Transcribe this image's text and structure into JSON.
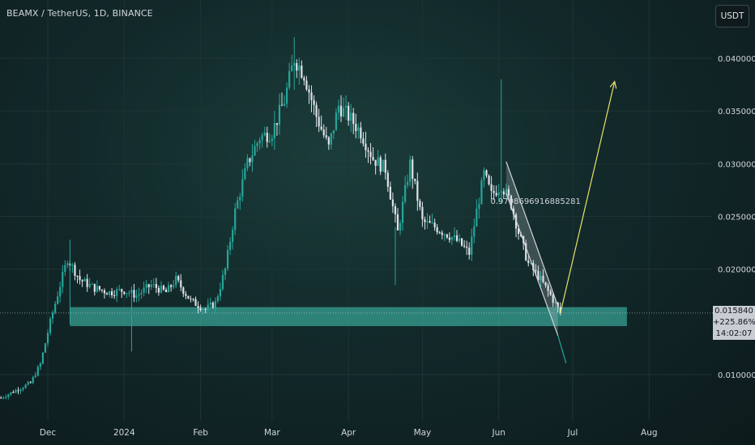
{
  "header": {
    "symbol_title": "BEAMX / TetherUS, 1D, BINANCE",
    "currency_button": "USDT"
  },
  "price_tags": {
    "last_price": "0.015840",
    "change_percent": "+225.86%",
    "bar_timer": "14:02:07"
  },
  "colors": {
    "up": "#26a69a",
    "down": "#e0e3e8",
    "zone": "#3fb9a9",
    "channel": "#d1d4dc",
    "projection": "#e8e26a",
    "axis_text": "#d1d4dc"
  },
  "chart_data": {
    "type": "candlestick",
    "x_tick_labels": [
      "Dec",
      "2024",
      "Feb",
      "Mar",
      "Apr",
      "May",
      "Jun",
      "Jul",
      "Aug"
    ],
    "y_tick_labels": [
      "0.040000",
      "0.035000",
      "0.030000",
      "0.025000",
      "0.020000",
      "0.010000"
    ],
    "y_ticks": [
      0.04,
      0.035,
      0.03,
      0.025,
      0.02,
      0.01
    ],
    "ylim": [
      0.0062,
      0.045
    ],
    "last_price": 0.01584,
    "annotation": "0.9798696916885281",
    "support_zone": {
      "from": 0.0146,
      "to": 0.0164
    },
    "price_path": [
      [
        "2023-11-12",
        0.0078
      ],
      [
        "2023-11-18",
        0.0085
      ],
      [
        "2023-11-24",
        0.0092
      ],
      [
        "2023-11-28",
        0.011
      ],
      [
        "2023-12-02",
        0.015
      ],
      [
        "2023-12-06",
        0.0185
      ],
      [
        "2023-12-09",
        0.021
      ],
      [
        "2023-12-14",
        0.019
      ],
      [
        "2023-12-20",
        0.0182
      ],
      [
        "2023-12-26",
        0.0178
      ],
      [
        "2024-01-01",
        0.018
      ],
      [
        "2024-01-06",
        0.0175
      ],
      [
        "2024-01-12",
        0.0185
      ],
      [
        "2024-01-18",
        0.0178
      ],
      [
        "2024-01-22",
        0.019
      ],
      [
        "2024-01-28",
        0.017
      ],
      [
        "2024-02-03",
        0.0162
      ],
      [
        "2024-02-07",
        0.0168
      ],
      [
        "2024-02-11",
        0.02
      ],
      [
        "2024-02-15",
        0.0255
      ],
      [
        "2024-02-20",
        0.03
      ],
      [
        "2024-02-25",
        0.0325
      ],
      [
        "2024-03-01",
        0.033
      ],
      [
        "2024-03-06",
        0.036
      ],
      [
        "2024-03-10",
        0.04
      ],
      [
        "2024-03-14",
        0.0385
      ],
      [
        "2024-03-19",
        0.0345
      ],
      [
        "2024-03-24",
        0.0315
      ],
      [
        "2024-03-28",
        0.0355
      ],
      [
        "2024-04-01",
        0.0345
      ],
      [
        "2024-04-06",
        0.033
      ],
      [
        "2024-04-11",
        0.0305
      ],
      [
        "2024-04-16",
        0.0295
      ],
      [
        "2024-04-21",
        0.0235
      ],
      [
        "2024-04-26",
        0.03
      ],
      [
        "2024-05-01",
        0.0245
      ],
      [
        "2024-05-06",
        0.024
      ],
      [
        "2024-05-12",
        0.0232
      ],
      [
        "2024-05-16",
        0.0225
      ],
      [
        "2024-05-20",
        0.0215
      ],
      [
        "2024-05-23",
        0.0255
      ],
      [
        "2024-05-26",
        0.029
      ],
      [
        "2024-05-29",
        0.027
      ],
      [
        "2024-06-02",
        0.028
      ],
      [
        "2024-06-06",
        0.0262
      ],
      [
        "2024-06-09",
        0.0235
      ],
      [
        "2024-06-13",
        0.0205
      ],
      [
        "2024-06-18",
        0.019
      ],
      [
        "2024-06-22",
        0.0175
      ],
      [
        "2024-06-26",
        0.01584
      ]
    ],
    "wicks": [
      {
        "date": "2023-12-10",
        "low": 0.0148,
        "high": 0.0228
      },
      {
        "date": "2024-01-04",
        "low": 0.0122,
        "high": 0.0175
      },
      {
        "date": "2024-03-10",
        "low": 0.037,
        "high": 0.042
      },
      {
        "date": "2024-04-20",
        "low": 0.0185,
        "high": 0.024
      },
      {
        "date": "2024-06-02",
        "low": 0.0262,
        "high": 0.038
      }
    ],
    "falling_channel": {
      "upper": [
        [
          "2024-06-04",
          0.0302
        ],
        [
          "2024-06-25",
          0.0165
        ]
      ],
      "lower": [
        [
          "2024-06-04",
          0.0272
        ],
        [
          "2024-06-25",
          0.0137
        ]
      ]
    },
    "projection_arrow": [
      [
        "2024-06-26",
        0.01584
      ],
      [
        "2024-07-18",
        0.0378
      ]
    ]
  }
}
